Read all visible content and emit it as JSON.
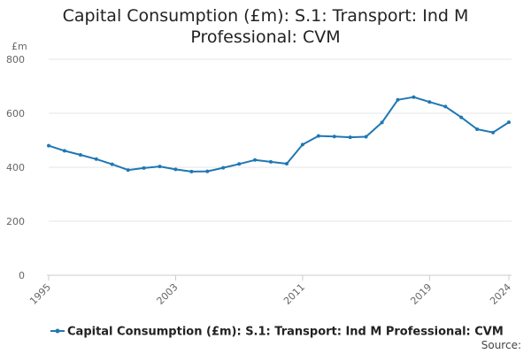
{
  "chart_data": {
    "type": "line",
    "title": "Capital Consumption (£m): S.1: Transport: Ind M Professional: CVM",
    "y_unit_label": "£m",
    "x": [
      1995,
      1996,
      1997,
      1998,
      1999,
      2000,
      2001,
      2002,
      2003,
      2004,
      2005,
      2006,
      2007,
      2008,
      2009,
      2010,
      2011,
      2012,
      2013,
      2014,
      2015,
      2016,
      2017,
      2018,
      2019,
      2020,
      2021,
      2022,
      2023,
      2024
    ],
    "series": [
      {
        "name": "Capital Consumption (£m): S.1: Transport: Ind M Professional: CVM",
        "values": [
          480,
          461,
          446,
          430,
          411,
          390,
          397,
          403,
          392,
          384,
          385,
          398,
          412,
          427,
          420,
          413,
          484,
          516,
          514,
          511,
          513,
          566,
          650,
          660,
          642,
          625,
          585,
          541,
          529,
          567
        ],
        "color": "#1f77b4"
      }
    ],
    "x_tick_labels": [
      "1995",
      "2003",
      "2011",
      "2019",
      "2024"
    ],
    "x_tick_values": [
      1995,
      2003,
      2011,
      2019,
      2024
    ],
    "y_ticks": [
      0,
      200,
      400,
      600,
      800
    ],
    "ylim": [
      0,
      800
    ],
    "xlim": [
      1995,
      2024
    ],
    "grid": "horizontal",
    "legend_position": "bottom",
    "source_label": "Source:"
  }
}
